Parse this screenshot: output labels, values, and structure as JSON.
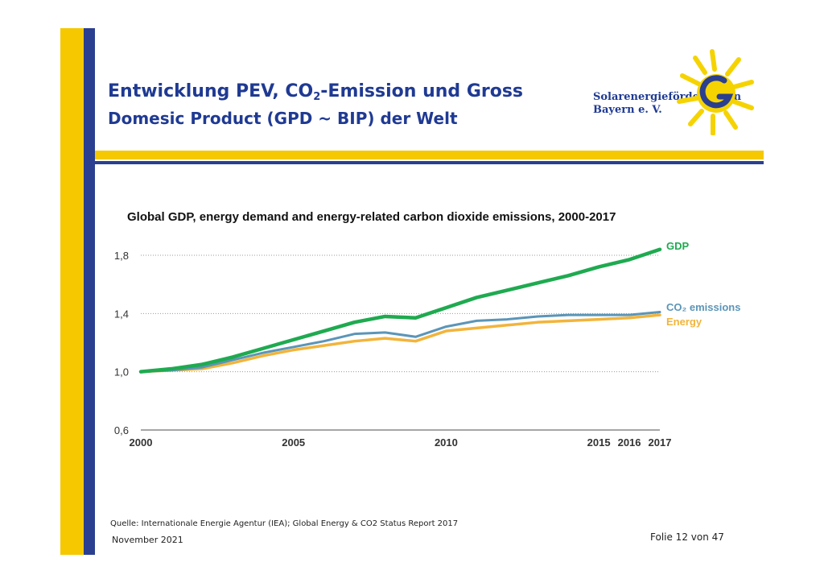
{
  "slide": {
    "title_line1_a": "Entwicklung ",
    "title_line1_b": "PEV, CO",
    "title_line1_sub": "2",
    "title_line1_c": "-Emission und Gross",
    "title_line2": "Domesic Product (GPD ~ BIP) der Welt",
    "logo_line1": "Solarenergieförderverein",
    "logo_line2": "Bayern e. V.",
    "source": "Quelle: Internationale Energie Agentur (IEA); Global Energy & CO2 Status Report 2017",
    "date": "November 2021",
    "page": "Folie 12 von 47"
  },
  "colors": {
    "brand_yellow": "#f5c800",
    "brand_blue": "#2a3f8f",
    "title_blue": "#1f3a93",
    "gdp": "#1faa50",
    "co2": "#5b95b8",
    "energy": "#f2b43a"
  },
  "chart_data": {
    "type": "line",
    "title": "Global GDP, energy demand and energy-related carbon dioxide emissions, 2000-2017",
    "xlabel": "",
    "ylabel": "",
    "x": [
      2000,
      2001,
      2002,
      2003,
      2004,
      2005,
      2006,
      2007,
      2008,
      2009,
      2010,
      2011,
      2012,
      2013,
      2014,
      2015,
      2016,
      2017
    ],
    "x_ticks": [
      "2000",
      "2005",
      "2010",
      "2015",
      "2016",
      "2017"
    ],
    "x_tick_values": [
      2000,
      2005,
      2010,
      2015,
      2016,
      2017
    ],
    "y_ticks": [
      "0,6",
      "1,0",
      "1,4",
      "1,8"
    ],
    "y_tick_values": [
      0.6,
      1.0,
      1.4,
      1.8
    ],
    "ylim": [
      0.6,
      1.8
    ],
    "grid": "horizontal dotted",
    "legend": "labels at line ends (right)",
    "series": [
      {
        "name": "GDP",
        "color": "#1faa50",
        "values": [
          1.0,
          1.02,
          1.05,
          1.1,
          1.16,
          1.22,
          1.28,
          1.34,
          1.38,
          1.37,
          1.44,
          1.51,
          1.56,
          1.61,
          1.66,
          1.72,
          1.77,
          1.84
        ]
      },
      {
        "name": "CO₂ emissions",
        "color": "#5b95b8",
        "values": [
          1.0,
          1.01,
          1.03,
          1.08,
          1.13,
          1.17,
          1.21,
          1.26,
          1.27,
          1.24,
          1.31,
          1.35,
          1.36,
          1.38,
          1.39,
          1.39,
          1.39,
          1.41
        ]
      },
      {
        "name": "Energy",
        "color": "#f2b43a",
        "values": [
          1.0,
          1.01,
          1.02,
          1.06,
          1.11,
          1.15,
          1.18,
          1.21,
          1.23,
          1.21,
          1.28,
          1.3,
          1.32,
          1.34,
          1.35,
          1.36,
          1.37,
          1.39
        ]
      }
    ]
  }
}
